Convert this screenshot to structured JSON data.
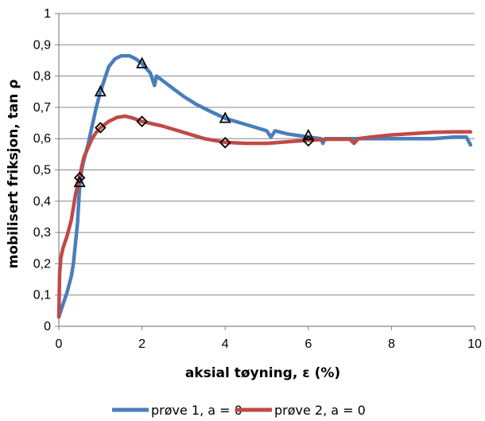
{
  "chart_data": {
    "type": "line",
    "xlabel": "aksial tøyning, ε (%)",
    "ylabel": "mobilisert friksjon, tan ρ",
    "xlim": [
      0,
      10
    ],
    "ylim": [
      0,
      1
    ],
    "x_ticks": [
      "0",
      "2",
      "4",
      "6",
      "8",
      "10"
    ],
    "y_ticks": [
      "0",
      "0,1",
      "0,2",
      "0,3",
      "0,4",
      "0,5",
      "0,6",
      "0,7",
      "0,8",
      "0,9",
      "1"
    ],
    "grid": "horizontal",
    "legend_position": "bottom",
    "series": [
      {
        "name": "prøve 1, a = 0",
        "color": "#4a7ebb",
        "marker": "triangle",
        "points": [
          [
            0,
            0.03
          ],
          [
            0.1,
            0.07
          ],
          [
            0.2,
            0.11
          ],
          [
            0.3,
            0.16
          ],
          [
            0.35,
            0.2
          ],
          [
            0.45,
            0.33
          ],
          [
            0.5,
            0.45
          ],
          [
            0.55,
            0.5
          ],
          [
            0.6,
            0.53
          ],
          [
            0.7,
            0.58
          ],
          [
            0.8,
            0.64
          ],
          [
            0.9,
            0.7
          ],
          [
            1.0,
            0.75
          ],
          [
            1.1,
            0.79
          ],
          [
            1.2,
            0.83
          ],
          [
            1.35,
            0.855
          ],
          [
            1.5,
            0.865
          ],
          [
            1.7,
            0.865
          ],
          [
            1.85,
            0.855
          ],
          [
            2.0,
            0.84
          ],
          [
            2.1,
            0.825
          ],
          [
            2.2,
            0.81
          ],
          [
            2.25,
            0.79
          ],
          [
            2.3,
            0.77
          ],
          [
            2.35,
            0.8
          ],
          [
            2.5,
            0.785
          ],
          [
            2.8,
            0.755
          ],
          [
            3.0,
            0.735
          ],
          [
            3.3,
            0.71
          ],
          [
            3.6,
            0.69
          ],
          [
            4.0,
            0.665
          ],
          [
            4.5,
            0.645
          ],
          [
            5.0,
            0.625
          ],
          [
            5.1,
            0.605
          ],
          [
            5.2,
            0.625
          ],
          [
            5.5,
            0.615
          ],
          [
            6.0,
            0.605
          ],
          [
            6.3,
            0.6
          ],
          [
            6.35,
            0.585
          ],
          [
            6.4,
            0.6
          ],
          [
            7.0,
            0.6
          ],
          [
            7.5,
            0.6
          ],
          [
            8.0,
            0.6
          ],
          [
            8.5,
            0.6
          ],
          [
            9.0,
            0.6
          ],
          [
            9.5,
            0.605
          ],
          [
            9.8,
            0.605
          ],
          [
            9.9,
            0.58
          ]
        ],
        "markers": [
          [
            0.5,
            0.46
          ],
          [
            1.0,
            0.75
          ],
          [
            2.0,
            0.84
          ],
          [
            4.0,
            0.665
          ],
          [
            6.0,
            0.61
          ]
        ]
      },
      {
        "name": "prøve 2, a = 0",
        "color": "#be4b48",
        "marker": "diamond",
        "points": [
          [
            0,
            0.03
          ],
          [
            0.02,
            0.17
          ],
          [
            0.05,
            0.22
          ],
          [
            0.1,
            0.25
          ],
          [
            0.2,
            0.29
          ],
          [
            0.3,
            0.34
          ],
          [
            0.4,
            0.42
          ],
          [
            0.5,
            0.48
          ],
          [
            0.6,
            0.54
          ],
          [
            0.7,
            0.57
          ],
          [
            0.8,
            0.6
          ],
          [
            0.9,
            0.62
          ],
          [
            1.0,
            0.635
          ],
          [
            1.2,
            0.655
          ],
          [
            1.4,
            0.668
          ],
          [
            1.6,
            0.672
          ],
          [
            1.8,
            0.665
          ],
          [
            2.0,
            0.655
          ],
          [
            2.5,
            0.64
          ],
          [
            3.0,
            0.62
          ],
          [
            3.5,
            0.6
          ],
          [
            4.0,
            0.588
          ],
          [
            4.5,
            0.585
          ],
          [
            5.0,
            0.585
          ],
          [
            5.5,
            0.59
          ],
          [
            6.0,
            0.595
          ],
          [
            6.5,
            0.598
          ],
          [
            7.0,
            0.598
          ],
          [
            7.1,
            0.585
          ],
          [
            7.2,
            0.6
          ],
          [
            7.5,
            0.605
          ],
          [
            8.0,
            0.612
          ],
          [
            8.5,
            0.616
          ],
          [
            9.0,
            0.62
          ],
          [
            9.5,
            0.622
          ],
          [
            9.9,
            0.622
          ]
        ],
        "markers": [
          [
            0.5,
            0.475
          ],
          [
            1.0,
            0.635
          ],
          [
            2.0,
            0.655
          ],
          [
            4.0,
            0.587
          ],
          [
            6.0,
            0.593
          ]
        ]
      }
    ]
  }
}
